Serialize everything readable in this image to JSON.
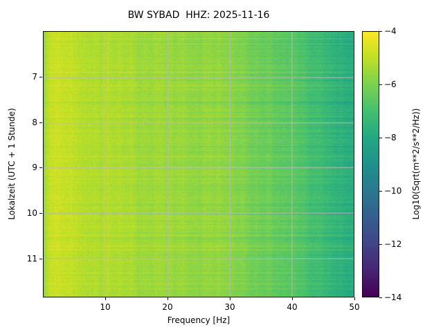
{
  "figure": {
    "background": "#ffffff",
    "grid_color": "#b8b8b8"
  },
  "chart_data": {
    "type": "heatmap",
    "title": "BW SYBAD  HHZ: 2025-11-16",
    "xlabel": "Frequency [Hz]",
    "ylabel": "Lokalzeit (UTC + 1 Stunde)",
    "xlim": [
      0,
      50
    ],
    "ylim_hours": [
      6.0,
      11.85
    ],
    "y_axis_inverted": true,
    "x_ticks": [
      10,
      20,
      30,
      40,
      50
    ],
    "y_ticks": [
      7,
      8,
      9,
      10,
      11
    ],
    "grid": true,
    "legend": "colorbar-right",
    "colormap": "viridis",
    "colorbar": {
      "label": "Log10(Sqrt(m**2/s**2/Hz))",
      "ticks": [
        -4,
        -6,
        -8,
        -10,
        -12,
        -14
      ],
      "vmin": -14,
      "vmax": -4
    },
    "value_profile": {
      "description": "Mean spectral amplitude Log10(Sqrt(m**2/s**2/Hz)) versus frequency, estimated from image colors; level decreases toward high frequency (yellow-green at low f, teal near 40-50 Hz)",
      "freq_points": [
        0,
        1,
        3,
        10,
        20,
        30,
        40,
        45,
        50
      ],
      "values": [
        -5.6,
        -4.8,
        -4.9,
        -5.2,
        -5.5,
        -5.8,
        -6.6,
        -7.2,
        -7.8
      ]
    }
  }
}
